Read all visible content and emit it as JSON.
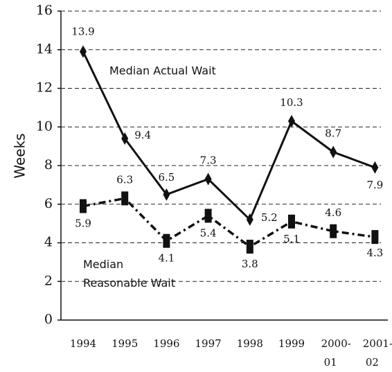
{
  "chart_data": {
    "type": "line",
    "y_label": "Weeks",
    "categories": [
      "1994",
      "1995",
      "1996",
      "1997",
      "1998",
      "1999",
      "2000-01",
      "2001-02"
    ],
    "series": [
      {
        "name": "Median Actual Wait",
        "color": "#111111",
        "style": "solid",
        "marker": "diamond",
        "values": [
          13.9,
          9.4,
          6.5,
          7.3,
          5.2,
          10.3,
          8.7,
          7.9
        ]
      },
      {
        "name": "Median Reasonable Wait",
        "color": "#111111",
        "style": "dashdot",
        "marker": "bar",
        "values": [
          5.9,
          6.3,
          4.1,
          5.4,
          3.8,
          5.1,
          4.6,
          4.3
        ]
      }
    ],
    "ylim": [
      0,
      16
    ],
    "yticks": [
      0,
      2,
      4,
      6,
      8,
      10,
      12,
      14,
      16
    ],
    "grid": true
  }
}
